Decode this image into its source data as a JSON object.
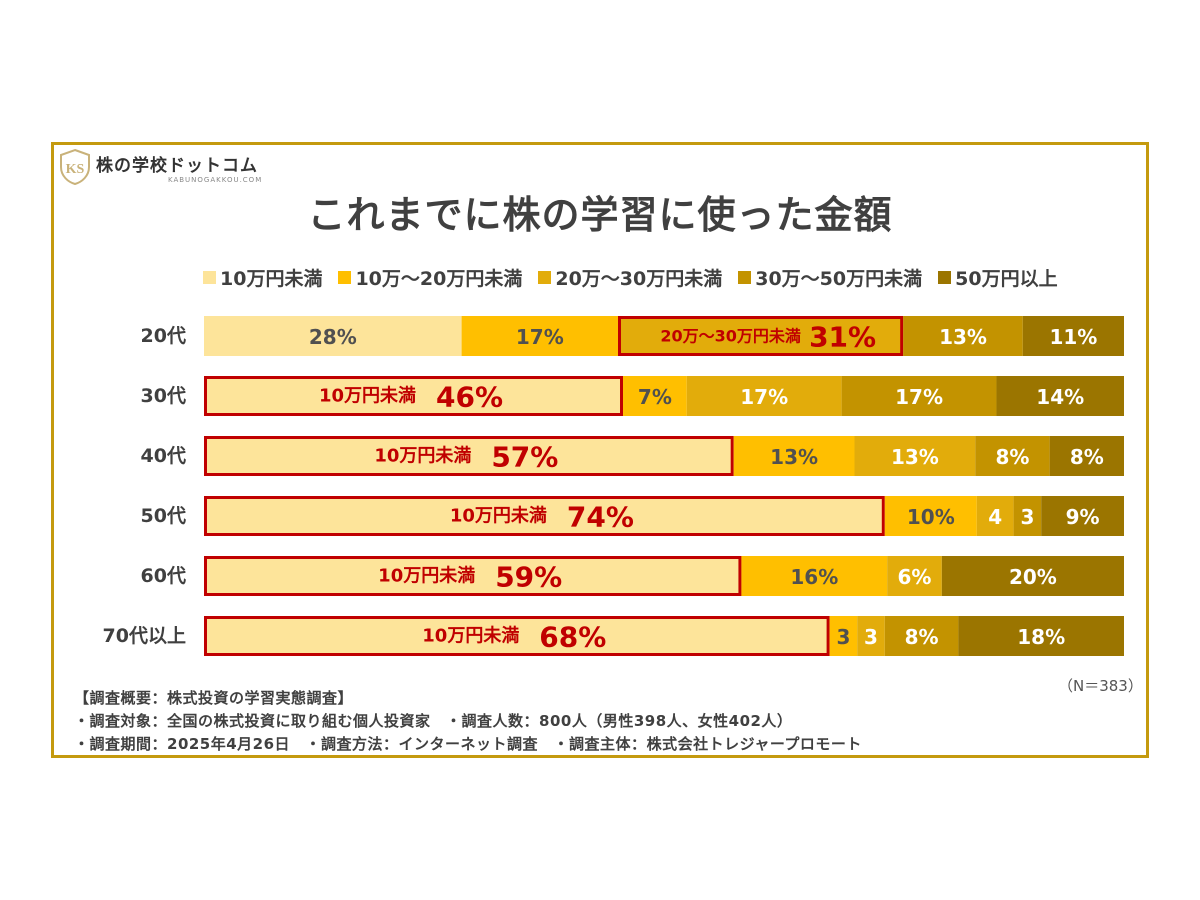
{
  "logo": {
    "mark": "KS",
    "name": "株の学校ドットコム",
    "sub": "KABUNOGAKKOU.COM"
  },
  "chart_data": {
    "type": "bar",
    "orientation": "horizontal",
    "stacked": true,
    "normalized": true,
    "title": "これまでに株の学習に使った金額",
    "categories": [
      "20代",
      "30代",
      "40代",
      "50代",
      "60代",
      "70代以上"
    ],
    "series": [
      {
        "name": "10万円未満",
        "color": "#FDE49A",
        "values": [
          28,
          46,
          57,
          74,
          59,
          68
        ],
        "labels": [
          "28%",
          "46%",
          "57%",
          "74%",
          "59%",
          "68%"
        ]
      },
      {
        "name": "10万～20万円未満",
        "color": "#FFBF00",
        "values": [
          17,
          7,
          13,
          10,
          16,
          3
        ],
        "labels": [
          "17%",
          "7%",
          "13%",
          "10%",
          "16%",
          "3"
        ]
      },
      {
        "name": "20万～30万円未満",
        "color": "#E2AC0B",
        "values": [
          31,
          17,
          13,
          4,
          6,
          3
        ],
        "labels": [
          "31%",
          "17%",
          "13%",
          "4",
          "6%",
          "3"
        ]
      },
      {
        "name": "30万～50万円未満",
        "color": "#C39300",
        "values": [
          13,
          17,
          8,
          3,
          0,
          8
        ],
        "labels": [
          "13%",
          "17%",
          "8%",
          "3",
          "",
          "8%"
        ]
      },
      {
        "name": "50万円以上",
        "color": "#9B7500",
        "values": [
          11,
          14,
          8,
          9,
          20,
          18
        ],
        "labels": [
          "11%",
          "14%",
          "8%",
          "9%",
          "20%",
          "18%"
        ]
      }
    ],
    "highlights": [
      {
        "category": "20代",
        "series": "20万～30万円未満",
        "label": "20万～30万円未満",
        "value": "31%"
      },
      {
        "category": "30代",
        "series": "10万円未満",
        "label": "10万円未満",
        "value": "46%"
      },
      {
        "category": "40代",
        "series": "10万円未満",
        "label": "10万円未満",
        "value": "57%"
      },
      {
        "category": "50代",
        "series": "10万円未満",
        "label": "10万円未満",
        "value": "74%"
      },
      {
        "category": "60代",
        "series": "10万円未満",
        "label": "10万円未満",
        "value": "59%"
      },
      {
        "category": "70代以上",
        "series": "10万円未満",
        "label": "10万円未満",
        "value": "68%"
      }
    ],
    "highlight_color": "#C00000",
    "legend_position": "top",
    "grid": false
  },
  "sample_note": "（N＝383）",
  "notes": [
    "【調査概要：株式投資の学習実態調査】",
    "・調査対象：全国の株式投資に取り組む個人投資家　・調査人数：800人（男性398人、女性402人）",
    "・調査期間：2025年4月26日　・調査方法：インターネット調査　・調査主体：株式会社トレジャープロモート"
  ],
  "colors": {
    "frame": "#C49A0F",
    "text": "#404040"
  }
}
